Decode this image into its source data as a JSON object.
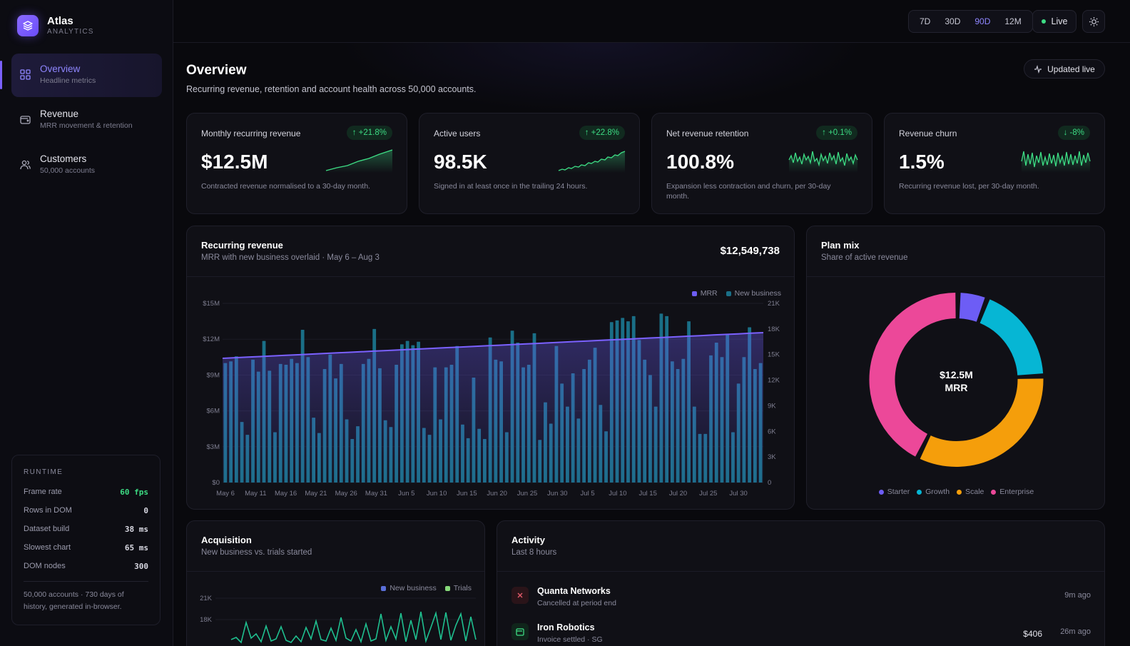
{
  "brand": {
    "name": "Atlas",
    "sub": "ANALYTICS"
  },
  "nav": [
    {
      "label": "Overview",
      "sub": "Headline metrics",
      "icon": "grid-icon",
      "active": true
    },
    {
      "label": "Revenue",
      "sub": "MRR movement & retention",
      "icon": "wallet-icon"
    },
    {
      "label": "Customers",
      "sub": "50,000 accounts",
      "icon": "users-icon"
    }
  ],
  "runtime": {
    "title": "RUNTIME",
    "rows": [
      {
        "label": "Frame rate",
        "value": "60 fps"
      },
      {
        "label": "Rows in DOM",
        "value": "0"
      },
      {
        "label": "Dataset build",
        "value": "38 ms"
      },
      {
        "label": "Slowest chart",
        "value": "65 ms"
      },
      {
        "label": "DOM nodes",
        "value": "300"
      }
    ],
    "footer": "50,000 accounts · 730 days of history, generated in-browser."
  },
  "topbar": {
    "ranges": [
      "7D",
      "30D",
      "90D",
      "12M"
    ],
    "active_range": "90D",
    "live_label": "Live",
    "theme_icon": "sun-icon"
  },
  "header": {
    "title": "Overview",
    "subtitle": "Recurring revenue, retention and account health across 50,000 accounts.",
    "updated_label": "Updated live"
  },
  "kpis": [
    {
      "label": "Monthly recurring revenue",
      "delta": "↑ +21.8%",
      "value": "$12.5M",
      "note": "Contracted revenue normalised to a 30-day month.",
      "trend": "rising-smooth"
    },
    {
      "label": "Active users",
      "delta": "↑ +22.8%",
      "value": "98.5K",
      "note": "Signed in at least once in the trailing 24 hours.",
      "trend": "rising-noisy"
    },
    {
      "label": "Net revenue retention",
      "delta": "↑ +0.1%",
      "value": "100.8%",
      "note": "Expansion less contraction and churn, per 30-day month.",
      "trend": "flat-noisy"
    },
    {
      "label": "Revenue churn",
      "delta": "↓ -8%",
      "value": "1.5%",
      "note": "Recurring revenue lost, per 30-day month.",
      "trend": "flat-noisy"
    }
  ],
  "colors": {
    "accent": "#7b61ff",
    "positive": "#3ddc84",
    "bar": "#1a6f87",
    "mrr_line": "#7b61ff",
    "starter": "#6d5df5",
    "growth": "#06b6d4",
    "scale": "#f59e0b",
    "enterprise": "#ec4899",
    "trials": "#4ade80"
  },
  "recurring": {
    "title": "Recurring revenue",
    "subtitle": "MRR with new business overlaid · May 6 – Aug 3",
    "total": "$12,549,738"
  },
  "plan_mix": {
    "title": "Plan mix",
    "subtitle": "Share of active revenue",
    "center_value": "$12.5M",
    "center_label": "MRR"
  },
  "acquisition": {
    "title": "Acquisition",
    "subtitle": "New business vs. trials started"
  },
  "activity": {
    "title": "Activity",
    "subtitle": "Last 8 hours",
    "items": [
      {
        "name": "Quanta Networks",
        "sub": "Cancelled at period end",
        "time": "9m ago",
        "amount": "",
        "icon": "close-icon"
      },
      {
        "name": "Iron Robotics",
        "sub": "Invoice settled · SG",
        "time": "26m ago",
        "amount": "$406",
        "icon": "invoice-icon"
      }
    ]
  },
  "chart_data": [
    {
      "type": "bar",
      "title": "Recurring revenue",
      "legend": [
        "MRR",
        "New business"
      ],
      "x_ticks": [
        "May 6",
        "May 11",
        "May 16",
        "May 21",
        "May 26",
        "May 31",
        "Jun 5",
        "Jun 10",
        "Jun 15",
        "Jun 20",
        "Jun 25",
        "Jun 30",
        "Jul 5",
        "Jul 10",
        "Jul 15",
        "Jul 20",
        "Jul 25",
        "Jul 30"
      ],
      "y_left_ticks": [
        "$0",
        "$3M",
        "$6M",
        "$9M",
        "$12M",
        "$15M"
      ],
      "y_right_ticks": [
        "0",
        "3K",
        "6K",
        "9K",
        "12K",
        "15K",
        "18K",
        "21K"
      ],
      "y_left_range": [
        0,
        15000000
      ],
      "y_right_range": [
        0,
        21000
      ],
      "legend_position": "top-right",
      "series": [
        {
          "name": "New business",
          "axis": "right",
          "values": [
            14000,
            14200,
            14800,
            7100,
            5600,
            14400,
            13000,
            16600,
            13100,
            5900,
            13900,
            13800,
            14500,
            14000,
            17900,
            14700,
            7600,
            5800,
            13300,
            15000,
            12200,
            13900,
            7400,
            5100,
            6600,
            13900,
            14500,
            18000,
            13400,
            7300,
            6500,
            13800,
            16200,
            16600,
            16100,
            16500,
            6400,
            5600,
            13500,
            7400,
            13500,
            13800,
            16000,
            6800,
            5200,
            12300,
            6300,
            5100,
            17000,
            14400,
            14200,
            5900,
            17800,
            16400,
            13500,
            13800,
            17500,
            5000,
            9400,
            6900,
            16000,
            11600,
            8900,
            12800,
            7500,
            13300,
            14400,
            15800,
            9100,
            6000,
            18800,
            19000,
            19300,
            18900,
            19500,
            16700,
            14400,
            12600,
            8900,
            19800,
            19500,
            14200,
            13300,
            14500,
            18900,
            8900,
            5700,
            5700,
            14900,
            16400,
            14700,
            17400,
            5900,
            11600,
            14700,
            18200,
            13300,
            14000
          ]
        },
        {
          "name": "MRR",
          "axis": "left",
          "values": [
            10400000,
            10450000,
            10500000,
            10550000,
            10600000,
            10650000,
            10700000,
            10750000,
            10800000,
            10850000,
            10900000,
            10950000,
            11000000,
            11050000,
            11100000,
            11150000,
            11200000,
            11250000,
            11300000,
            11350000,
            11400000,
            11450000,
            11500000,
            11550000,
            11600000,
            11650000,
            11700000,
            11750000,
            11800000,
            11850000,
            11900000,
            11950000,
            12000000,
            12050000,
            12100000,
            12150000,
            12200000,
            12250000,
            12300000,
            12350000,
            12400000,
            12450000,
            12500000,
            12549738
          ]
        }
      ]
    },
    {
      "type": "pie",
      "title": "Plan mix",
      "categories": [
        "Starter",
        "Growth",
        "Scale",
        "Enterprise"
      ],
      "values": [
        5.5,
        18.5,
        33,
        43
      ]
    },
    {
      "type": "line",
      "title": "Acquisition",
      "legend": [
        "New business",
        "Trials"
      ],
      "y_ticks": [
        "21K",
        "18K"
      ],
      "y_range": [
        12000,
        21000
      ],
      "series": [
        {
          "name": "Trials",
          "values": [
            15200,
            15500,
            14800,
            17600,
            15400,
            16000,
            14900,
            17100,
            15000,
            15300,
            17000,
            15100,
            14800,
            15700,
            14900,
            16900,
            15300,
            17800,
            15200,
            15000,
            16800,
            15100,
            18300,
            15400,
            15000,
            16600,
            14900,
            17400,
            15000,
            15300,
            18800,
            15100,
            17000,
            15300,
            18900,
            14900,
            17900,
            15200,
            19100,
            15000,
            16900,
            18900,
            15200,
            19000,
            15100,
            17200,
            18800,
            15000,
            18400,
            15200
          ]
        }
      ]
    }
  ]
}
